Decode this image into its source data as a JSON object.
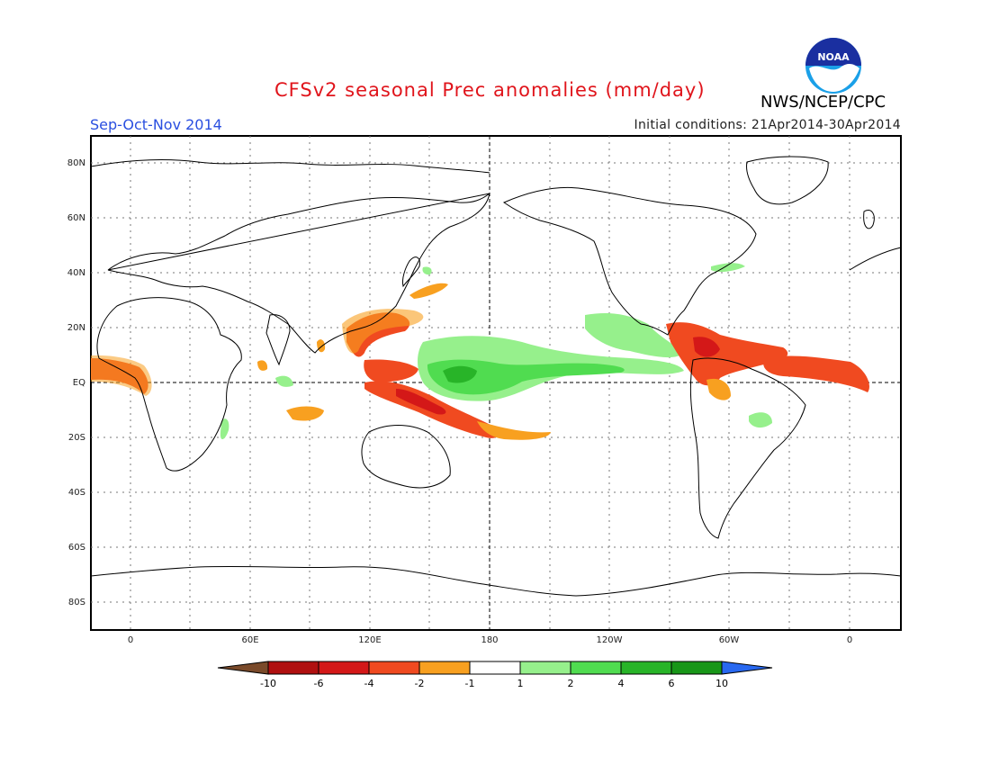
{
  "header": {
    "title": "CFSv2 seasonal Prec anomalies (mm/day)",
    "season": "Sep-Oct-Nov 2014",
    "initial_conditions": "Initial conditions: 21Apr2014-30Apr2014",
    "agency": "NWS/NCEP/CPC",
    "logo_text": "NOAA"
  },
  "map": {
    "lat_labels": [
      "80N",
      "60N",
      "40N",
      "20N",
      "EQ",
      "20S",
      "40S",
      "60S",
      "80S"
    ],
    "lon_labels": [
      "0",
      "60E",
      "120E",
      "180",
      "120W",
      "60W",
      "0"
    ]
  },
  "colorbar": {
    "levels": [
      "-10",
      "-6",
      "-4",
      "-2",
      "-1",
      "1",
      "2",
      "4",
      "6",
      "10"
    ],
    "colors": [
      "#7a4a2a",
      "#b01010",
      "#d41818",
      "#f04a20",
      "#f8a020",
      "#ffffff",
      "#96f08c",
      "#50dc50",
      "#28b428",
      "#189618",
      "#2868f0"
    ]
  }
}
